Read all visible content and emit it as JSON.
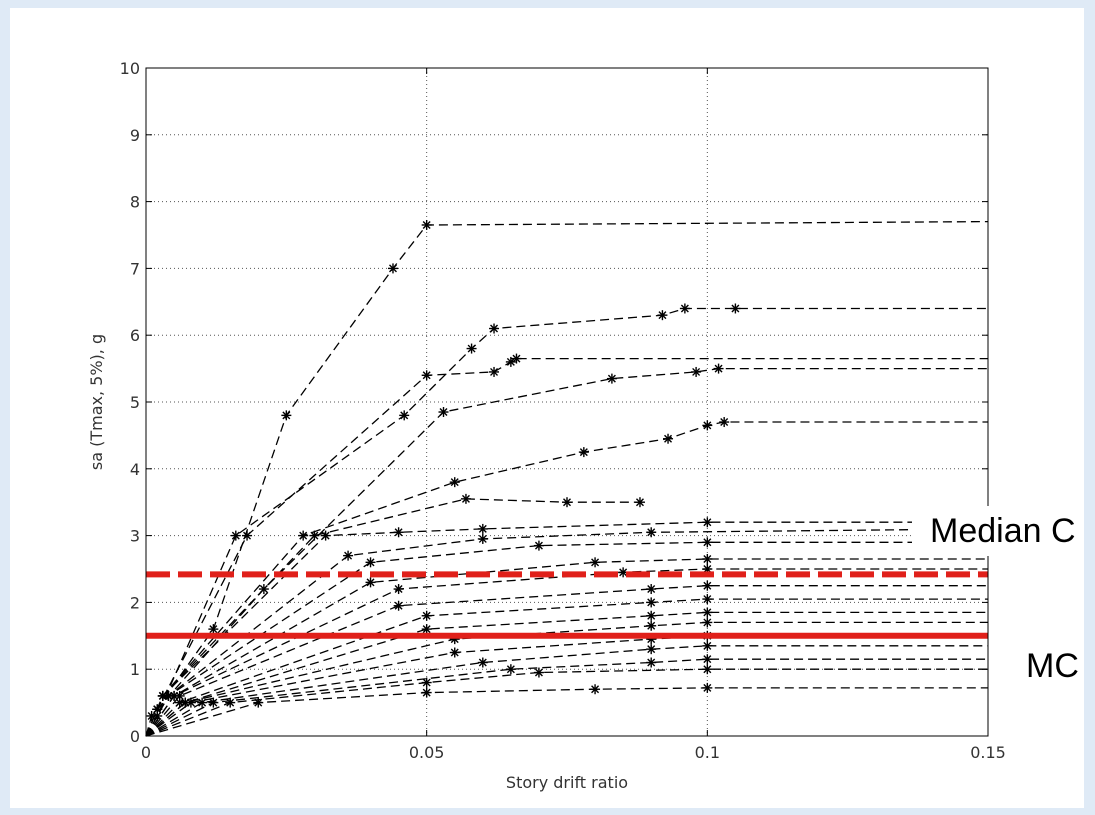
{
  "chart_data": {
    "type": "line",
    "title": "",
    "xlabel": "Story drift ratio",
    "ylabel": "sa (Tmax, 5%), g",
    "xlim": [
      0,
      0.15
    ],
    "ylim": [
      0,
      10
    ],
    "xticks": [
      "0",
      "0.05",
      "0.1",
      "0.15"
    ],
    "yticks": [
      "0",
      "1",
      "2",
      "3",
      "4",
      "5",
      "6",
      "7",
      "8",
      "9",
      "10"
    ],
    "grid": true,
    "callouts": [
      "Median C",
      "MC"
    ],
    "reference_lines": [
      {
        "y": 2.42,
        "style": "dashed",
        "color": "#e0201a"
      },
      {
        "y": 1.5,
        "style": "solid",
        "color": "#e0201a"
      }
    ],
    "series": [
      {
        "x": [
          0,
          0.001,
          0.012,
          0.025,
          0.044,
          0.05,
          0.15
        ],
        "values": [
          0,
          0.3,
          1.6,
          4.8,
          7.0,
          7.65,
          7.7
        ]
      },
      {
        "x": [
          0,
          0.002,
          0.016,
          0.046,
          0.058,
          0.062,
          0.092,
          0.096,
          0.105,
          0.15
        ],
        "values": [
          0,
          0.3,
          3.0,
          4.8,
          5.8,
          6.1,
          6.3,
          6.4,
          6.4,
          6.4
        ]
      },
      {
        "x": [
          0,
          0.002,
          0.018,
          0.05,
          0.062,
          0.065,
          0.066,
          0.15
        ],
        "values": [
          0,
          0.4,
          3.0,
          5.4,
          5.45,
          5.6,
          5.65,
          5.65
        ]
      },
      {
        "x": [
          0,
          0.002,
          0.021,
          0.053,
          0.083,
          0.098,
          0.102,
          0.15
        ],
        "values": [
          0,
          0.4,
          2.2,
          4.85,
          5.35,
          5.45,
          5.5,
          5.5
        ]
      },
      {
        "x": [
          0,
          0.003,
          0.028,
          0.055,
          0.078,
          0.093,
          0.1,
          0.103,
          0.15
        ],
        "values": [
          0,
          0.6,
          3.0,
          3.8,
          4.25,
          4.45,
          4.65,
          4.7,
          4.7
        ]
      },
      {
        "x": [
          0,
          0.003,
          0.03,
          0.057,
          0.075,
          0.088
        ],
        "values": [
          0,
          0.6,
          3.0,
          3.55,
          3.5,
          3.5
        ]
      },
      {
        "x": [
          0,
          0.003,
          0.032,
          0.045,
          0.06,
          0.1,
          0.15
        ],
        "values": [
          0,
          0.6,
          3.0,
          3.05,
          3.1,
          3.2,
          3.2
        ]
      },
      {
        "x": [
          0,
          0.004,
          0.036,
          0.06,
          0.09,
          0.15
        ],
        "values": [
          0,
          0.6,
          2.7,
          2.95,
          3.05,
          3.1
        ]
      },
      {
        "x": [
          0,
          0.004,
          0.04,
          0.07,
          0.1,
          0.15
        ],
        "values": [
          0,
          0.6,
          2.6,
          2.85,
          2.9,
          2.9
        ]
      },
      {
        "x": [
          0,
          0.005,
          0.04,
          0.08,
          0.1,
          0.15
        ],
        "values": [
          0,
          0.6,
          2.3,
          2.6,
          2.65,
          2.65
        ]
      },
      {
        "x": [
          0,
          0.005,
          0.045,
          0.085,
          0.1,
          0.15
        ],
        "values": [
          0,
          0.6,
          2.2,
          2.45,
          2.5,
          2.5
        ]
      },
      {
        "x": [
          0,
          0.006,
          0.045,
          0.09,
          0.1,
          0.15
        ],
        "values": [
          0,
          0.6,
          1.95,
          2.2,
          2.25,
          2.25
        ]
      },
      {
        "x": [
          0,
          0.006,
          0.05,
          0.09,
          0.1,
          0.15
        ],
        "values": [
          0,
          0.5,
          1.8,
          2.0,
          2.05,
          2.05
        ]
      },
      {
        "x": [
          0,
          0.007,
          0.05,
          0.09,
          0.1,
          0.15
        ],
        "values": [
          0,
          0.5,
          1.6,
          1.8,
          1.85,
          1.85
        ]
      },
      {
        "x": [
          0,
          0.007,
          0.055,
          0.09,
          0.1,
          0.15
        ],
        "values": [
          0,
          0.5,
          1.45,
          1.65,
          1.7,
          1.7
        ]
      },
      {
        "x": [
          0,
          0.008,
          0.055,
          0.09,
          0.1,
          0.15
        ],
        "values": [
          0,
          0.5,
          1.25,
          1.45,
          1.5,
          1.5
        ]
      },
      {
        "x": [
          0,
          0.01,
          0.06,
          0.09,
          0.1,
          0.15
        ],
        "values": [
          0,
          0.5,
          1.1,
          1.3,
          1.35,
          1.35
        ]
      },
      {
        "x": [
          0,
          0.012,
          0.065,
          0.09,
          0.1,
          0.15
        ],
        "values": [
          0,
          0.5,
          1.0,
          1.1,
          1.15,
          1.15
        ]
      },
      {
        "x": [
          0,
          0.015,
          0.05,
          0.07,
          0.1,
          0.15
        ],
        "values": [
          0,
          0.5,
          0.8,
          0.95,
          1.0,
          1.0
        ]
      },
      {
        "x": [
          0,
          0.02,
          0.05,
          0.08,
          0.1,
          0.15
        ],
        "values": [
          0,
          0.5,
          0.65,
          0.7,
          0.72,
          0.72
        ]
      }
    ]
  }
}
